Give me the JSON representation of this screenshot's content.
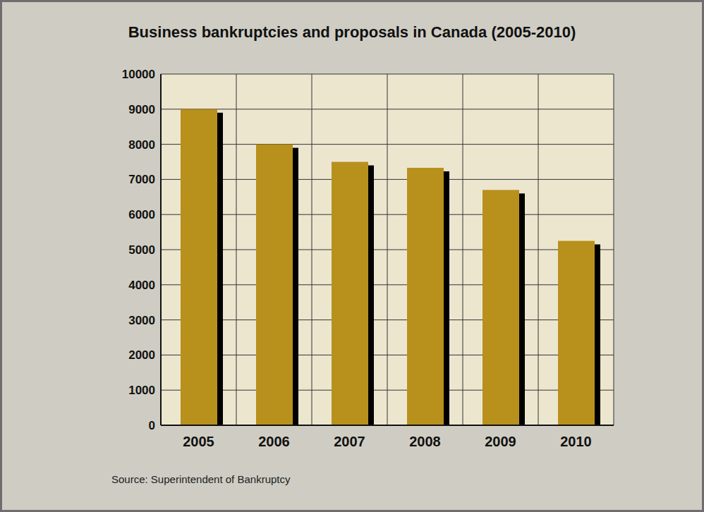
{
  "chart_data": {
    "type": "bar",
    "title": "Business bankruptcies and proposals in Canada (2005-2010)",
    "source": "Source: Superintendent of Bankruptcy",
    "categories": [
      "2005",
      "2006",
      "2007",
      "2008",
      "2009",
      "2010"
    ],
    "values": [
      9000,
      8000,
      7500,
      7330,
      6700,
      5250
    ],
    "color": "#B8901C",
    "ylim": [
      0,
      10000
    ],
    "yticks": [
      0,
      1000,
      2000,
      3000,
      4000,
      5000,
      6000,
      7000,
      8000,
      9000,
      10000
    ],
    "grid": true
  }
}
